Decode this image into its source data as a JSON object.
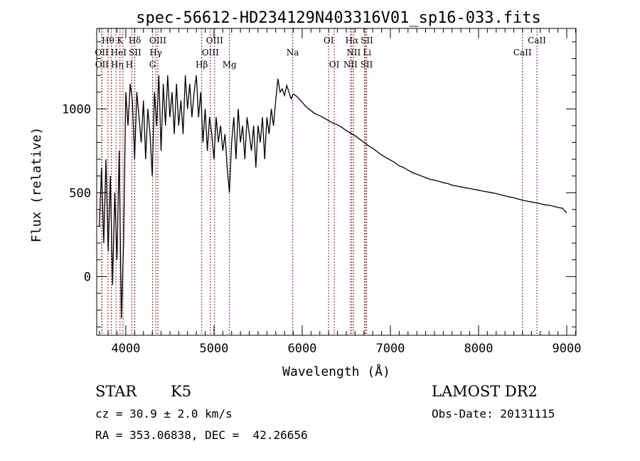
{
  "chart_data": {
    "type": "line",
    "title": "spec-56612-HD234129N403316V01_sp16-033.fits",
    "xlabel": "Wavelength (Å)",
    "ylabel": "Flux (relative)",
    "xlim": [
      3670,
      9105
    ],
    "ylim": [
      -350,
      1480
    ],
    "x_ticks": [
      "4000",
      "5000",
      "6000",
      "7000",
      "8000",
      "9000"
    ],
    "y_ticks": [
      "0",
      "500",
      "1000"
    ],
    "grid": false,
    "series": [
      {
        "name": "spectrum-blue",
        "start": 3700,
        "step": 25,
        "flux": [
          300,
          650,
          200,
          700,
          150,
          600,
          -50,
          500,
          100,
          750,
          -250,
          200,
          1100,
          900,
          1150,
          1050,
          700,
          1100,
          950,
          800,
          1050,
          700,
          1000,
          850,
          600,
          1100,
          900,
          1200,
          750,
          1150,
          900,
          1200,
          950,
          1100,
          850,
          1150,
          900,
          1050,
          850,
          1200,
          1000,
          1150,
          950,
          1100,
          1200,
          950,
          1100,
          800,
          1000,
          750,
          950,
          850,
          700,
          950,
          800,
          900,
          750,
          850,
          650,
          500,
          800,
          950,
          700,
          1000,
          800,
          900,
          700,
          950,
          850,
          750,
          900,
          650,
          900,
          800,
          950,
          700,
          950,
          850,
          1000,
          900,
          1050,
          1180,
          1100,
          1120,
          1080,
          1140,
          1100,
          1060,
          1090
        ]
      },
      {
        "name": "spectrum-red",
        "start": 5950,
        "step": 50,
        "flux": [
          1070,
          1040,
          1010,
          990,
          970,
          960,
          945,
          930,
          915,
          905,
          890,
          870,
          855,
          840,
          820,
          800,
          780,
          765,
          745,
          725,
          710,
          695,
          680,
          660,
          650,
          635,
          620,
          610,
          600,
          590,
          580,
          575,
          568,
          560,
          555,
          545,
          540,
          535,
          530,
          525,
          520,
          515,
          510,
          505,
          500,
          495,
          488,
          482,
          475,
          470,
          462,
          455,
          450,
          445,
          440,
          435,
          428,
          425,
          420,
          412,
          408,
          380
        ]
      }
    ],
    "lines": [
      {
        "label": "Hθ",
        "wl": 3798,
        "row": 0
      },
      {
        "label": "K",
        "wl": 3934,
        "row": 0
      },
      {
        "label": "Hδ",
        "wl": 4102,
        "row": 0
      },
      {
        "label": "OIII",
        "wl": 4363,
        "row": 0
      },
      {
        "label": "OIII",
        "wl": 5007,
        "row": 0
      },
      {
        "label": "OI",
        "wl": 6300,
        "row": 0
      },
      {
        "label": "Hα",
        "wl": 6563,
        "row": 0
      },
      {
        "label": "SII",
        "wl": 6716,
        "row": 0
      },
      {
        "label": "CaII",
        "wl": 8662,
        "row": 0
      },
      {
        "label": "OII",
        "wl": 3727,
        "row": 1
      },
      {
        "label": "HeI",
        "wl": 3889,
        "row": 1
      },
      {
        "label": "SII",
        "wl": 4069,
        "row": 1
      },
      {
        "label": "Hγ",
        "wl": 4340,
        "row": 1
      },
      {
        "label": "OIII",
        "wl": 4959,
        "row": 1
      },
      {
        "label": "Na",
        "wl": 5893,
        "row": 1
      },
      {
        "label": "NII",
        "wl": 6583,
        "row": 1
      },
      {
        "label": "Li",
        "wl": 6708,
        "row": 1
      },
      {
        "label": "CaII",
        "wl": 8498,
        "row": 1
      },
      {
        "label": "OII",
        "wl": 3729,
        "row": 2
      },
      {
        "label": "Hη",
        "wl": 3835,
        "row": 2
      },
      {
        "label": "H",
        "wl": 3968,
        "row": 2
      },
      {
        "label": "G",
        "wl": 4304,
        "row": 2
      },
      {
        "label": "Hβ",
        "wl": 4861,
        "row": 2
      },
      {
        "label": "Mg",
        "wl": 5175,
        "row": 2
      },
      {
        "label": "OI",
        "wl": 6364,
        "row": 2
      },
      {
        "label": "NII",
        "wl": 6548,
        "row": 2
      },
      {
        "label": "SII",
        "wl": 6731,
        "row": 2
      }
    ],
    "line_color": "#8b1c1c"
  },
  "info": {
    "object_type": "STAR",
    "subclass": "K5",
    "cz": "cz = 30.9 ± 2.0 km/s",
    "coords": "RA = 353.06838, DEC =  42.26656",
    "survey": "LAMOST DR2",
    "obs_date": "Obs-Date: 20131115"
  }
}
